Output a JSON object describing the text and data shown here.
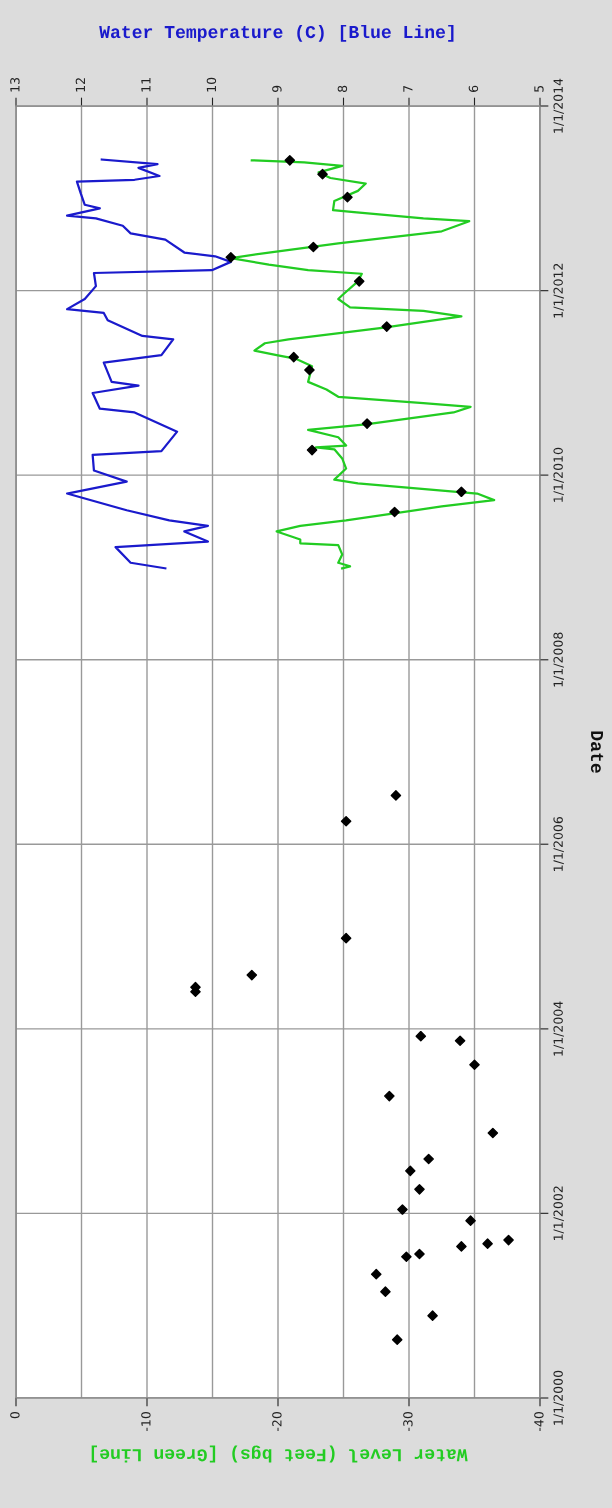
{
  "chart_data": {
    "type": "line",
    "orientation": "horizontal",
    "xlabel": "Water Level (Feet bgs) [Green Line]",
    "x2label": "Water Temperature (C) [Blue Line]",
    "ylabel": "Date",
    "xlim": [
      0,
      -40
    ],
    "xticks": [
      0,
      -10,
      -20,
      -30,
      -40
    ],
    "x2lim": [
      13,
      5
    ],
    "x2ticks": [
      13,
      12,
      11,
      10,
      9,
      8,
      7,
      6,
      5
    ],
    "ylim": [
      "2000-01-01",
      "2014-01-01"
    ],
    "yticks": [
      {
        "value": "2000-01-01",
        "label": "1/1/2000"
      },
      {
        "value": "2002-01-01",
        "label": "1/1/2002"
      },
      {
        "value": "2004-01-01",
        "label": "1/1/2004"
      },
      {
        "value": "2006-01-01",
        "label": "1/1/2006"
      },
      {
        "value": "2008-01-01",
        "label": "1/1/2008"
      },
      {
        "value": "2010-01-01",
        "label": "1/1/2010"
      },
      {
        "value": "2012-01-01",
        "label": "1/1/2012"
      },
      {
        "value": "2014-01-01",
        "label": "1/1/2014"
      }
    ],
    "grid": true,
    "series": [
      {
        "color": "#22cc22",
        "marker": "none",
        "line_style": "solid",
        "x": [
          "2013-05-31",
          "2013-05-23",
          "2013-05-09",
          "2013-04-13",
          "2013-03-22",
          "2013-02-28",
          "2013-01-30",
          "2012-12-21",
          "2012-11-15",
          "2012-11-07",
          "2012-10-13",
          "2012-10-02",
          "2012-08-23",
          "2012-07-06",
          "2012-05-31",
          "2012-05-09",
          "2012-04-13",
          "2012-03-22",
          "2012-03-08",
          "2012-02-07",
          "2011-12-14",
          "2011-11-29",
          "2011-10-27",
          "2011-10-13",
          "2011-09-21",
          "2011-08-08",
          "2011-06-22",
          "2011-06-07",
          "2011-05-09",
          "2011-04-21",
          "2011-04-06",
          "2011-03-08",
          "2011-01-05",
          "2010-12-06",
          "2010-11-07",
          "2010-10-13",
          "2010-09-28",
          "2010-09-06",
          "2010-07-21",
          "2010-06-29",
          "2010-05-31",
          "2010-04-28",
          "2010-04-21",
          "2010-04-13",
          "2010-03-08",
          "2010-01-27",
          "2009-12-14",
          "2009-11-29",
          "2009-10-20",
          "2009-09-24",
          "2009-08-30",
          "2009-07-06",
          "2009-06-14",
          "2009-05-23",
          "2009-04-21",
          "2009-04-06",
          "2009-03-30",
          "2009-02-21",
          "2009-01-19",
          "2009-01-05",
          "2008-12-28"
        ],
        "values": [
          -18.0,
          -22.0,
          -24.9,
          -23.1,
          -24.0,
          -26.7,
          -26.1,
          -24.3,
          -24.2,
          -25.8,
          -31.1,
          -34.6,
          -32.5,
          -24.6,
          -19.3,
          -16.4,
          -19.3,
          -22.3,
          -26.4,
          -26.1,
          -24.9,
          -24.6,
          -25.5,
          -31.1,
          -34.0,
          -28.1,
          -20.8,
          -19.0,
          -18.2,
          -19.9,
          -21.4,
          -22.6,
          -22.3,
          -23.7,
          -24.6,
          -31.1,
          -34.7,
          -33.4,
          -26.7,
          -22.3,
          -24.6,
          -25.2,
          -22.9,
          -24.3,
          -24.9,
          -25.2,
          -24.3,
          -26.1,
          -35.2,
          -36.5,
          -32.5,
          -25.2,
          -21.7,
          -19.9,
          -21.7,
          -21.7,
          -24.6,
          -24.9,
          -24.6,
          -25.5,
          -24.9
        ]
      },
      {
        "color": "#1a1acc",
        "marker": "none",
        "line_style": "solid",
        "axis": "x2",
        "x": [
          "2013-06-03",
          "2013-05-16",
          "2013-05-01",
          "2013-03-30",
          "2013-03-15",
          "2013-03-08",
          "2013-01-19",
          "2012-12-06",
          "2012-11-22",
          "2012-10-24",
          "2012-10-13",
          "2012-09-14",
          "2012-08-15",
          "2012-07-21",
          "2012-05-31",
          "2012-05-16",
          "2012-04-24",
          "2012-03-22",
          "2012-03-11",
          "2012-01-19",
          "2011-11-29",
          "2011-10-20",
          "2011-10-05",
          "2011-09-06",
          "2011-07-06",
          "2011-06-22",
          "2011-04-21",
          "2011-03-22",
          "2011-01-05",
          "2010-12-21",
          "2010-11-22",
          "2010-09-21",
          "2010-09-06",
          "2010-06-22",
          "2010-04-06",
          "2010-03-22",
          "2010-01-19",
          "2009-12-06",
          "2009-10-20",
          "2009-08-15",
          "2009-07-06",
          "2009-06-14",
          "2009-05-23",
          "2009-04-13",
          "2009-03-22",
          "2009-01-19",
          "2008-12-28"
        ],
        "values": [
          11.69,
          10.84,
          11.13,
          10.81,
          11.19,
          12.07,
          12.01,
          11.95,
          11.72,
          12.22,
          11.78,
          11.37,
          11.25,
          10.72,
          10.43,
          9.96,
          9.72,
          10.01,
          11.81,
          11.78,
          11.95,
          12.22,
          11.66,
          11.6,
          11.07,
          10.6,
          10.78,
          11.66,
          11.54,
          11.13,
          11.83,
          11.72,
          11.19,
          10.54,
          10.78,
          11.83,
          11.81,
          11.31,
          12.22,
          11.31,
          10.66,
          10.07,
          10.43,
          10.07,
          11.48,
          11.25,
          10.72
        ]
      },
      {
        "type": "scatter",
        "color": "#000000",
        "marker": "diamond",
        "x": [
          "2013-05-31",
          "2013-04-06",
          "2013-01-05",
          "2012-06-22",
          "2012-05-12",
          "2012-02-07",
          "2011-08-12",
          "2011-04-13",
          "2011-02-21",
          "2010-07-24",
          "2010-04-10",
          "2009-10-27",
          "2009-08-08",
          "2006-07-13",
          "2006-04-02",
          "2004-12-25",
          "2004-08-01",
          "2004-06-14",
          "2004-05-27",
          "2003-12-03",
          "2003-11-15",
          "2003-08-12",
          "2003-04-10",
          "2002-11-15",
          "2002-08-04",
          "2002-06-18",
          "2002-04-06",
          "2002-01-16",
          "2001-12-03",
          "2001-09-17",
          "2001-09-03",
          "2001-08-23",
          "2001-07-24",
          "2001-07-13",
          "2001-05-05",
          "2001-02-25",
          "2000-11-22",
          "2000-08-19"
        ],
        "values": [
          -20.9,
          -23.4,
          -25.3,
          -22.7,
          -16.4,
          -26.2,
          -28.3,
          -21.2,
          -22.4,
          -26.8,
          -22.6,
          -34.0,
          -28.9,
          -29.0,
          -25.2,
          -25.2,
          -18.0,
          -13.7,
          -13.7,
          -30.9,
          -33.9,
          -35.0,
          -28.5,
          -36.4,
          -31.5,
          -30.1,
          -30.8,
          -29.5,
          -34.7,
          -37.6,
          -36.0,
          -34.0,
          -30.8,
          -29.8,
          -27.5,
          -28.2,
          -31.8,
          -29.1
        ]
      }
    ]
  }
}
